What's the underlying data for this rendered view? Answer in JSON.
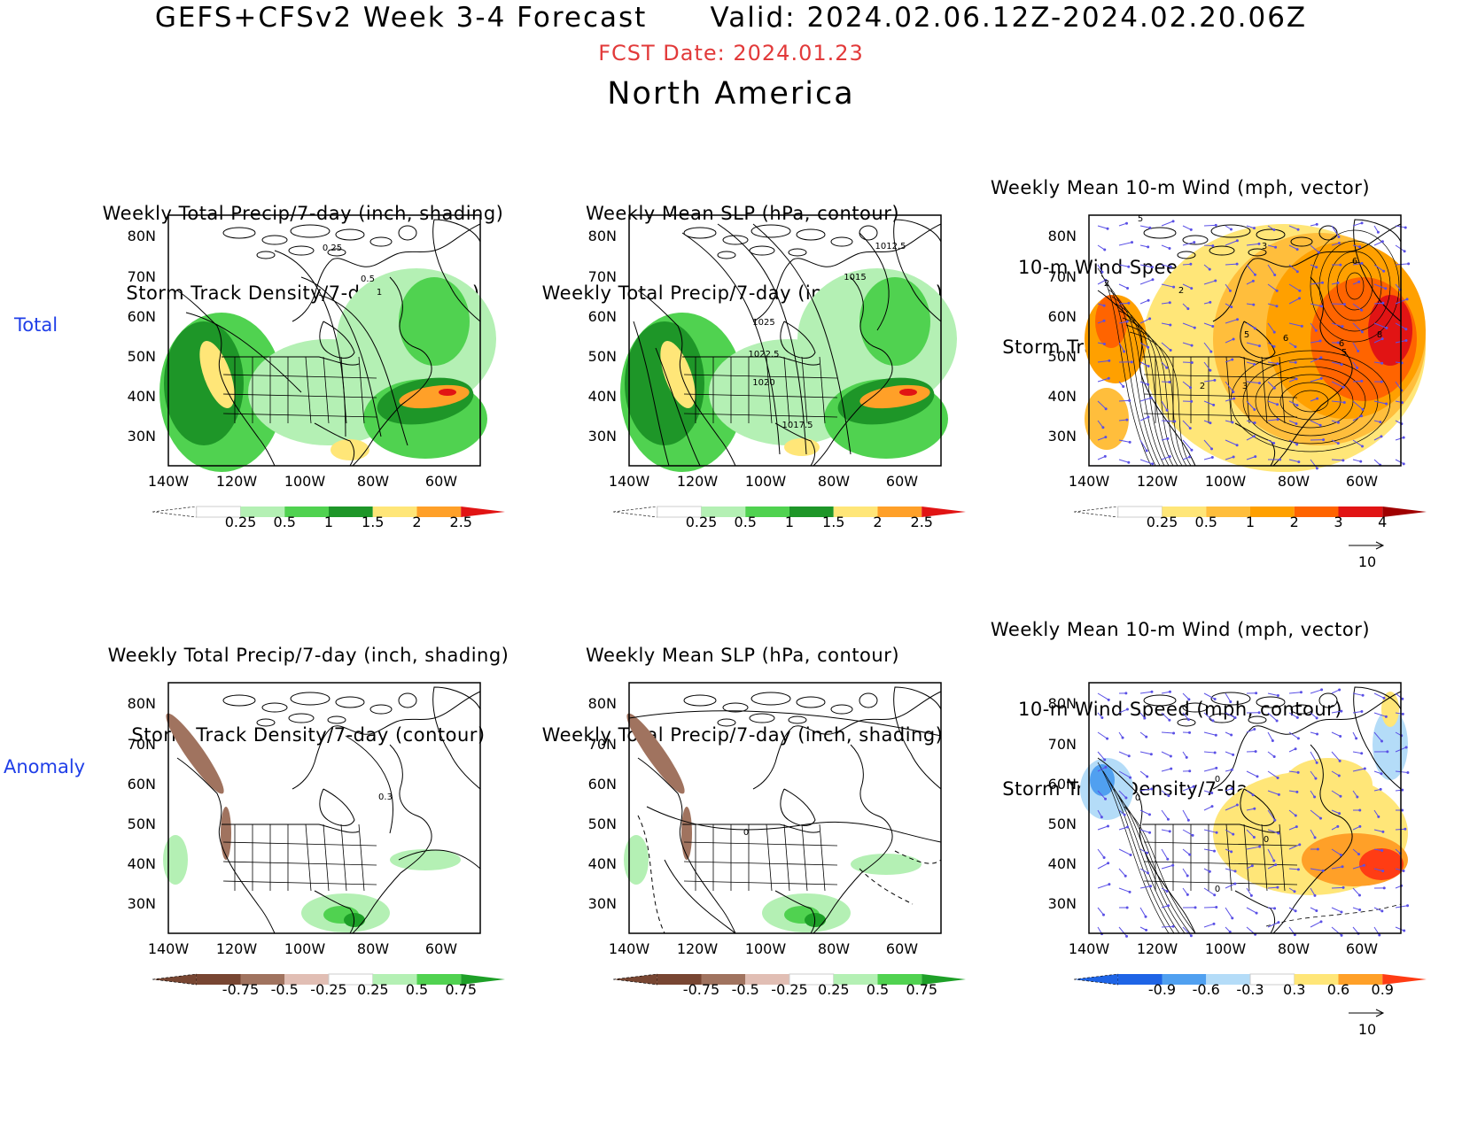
{
  "header": {
    "line1": "GEFS+CFSv2 Week 3-4 Forecast      Valid: 2024.02.06.12Z-2024.02.20.06Z",
    "fcst_date": "FCST Date: 2024.01.23",
    "region": "North America"
  },
  "rows": {
    "total": "Total",
    "anomaly": "Anomaly"
  },
  "axes": {
    "lat_labels": [
      "80N",
      "70N",
      "60N",
      "50N",
      "40N",
      "30N"
    ],
    "lon_labels": [
      "140W",
      "120W",
      "100W",
      "80W",
      "60W"
    ]
  },
  "panels": {
    "total_precip_track": {
      "title_lines": [
        "Weekly Total Precip/7-day (inch, shading)",
        "Storm Track Density/7-day (contour)"
      ],
      "contour_labels": [
        "0.25",
        "0.5",
        "1"
      ],
      "colorbar_labels": [
        "0.25",
        "0.5",
        "1",
        "1.5",
        "2",
        "2.5"
      ]
    },
    "total_slp_precip": {
      "title_lines": [
        "Weekly Mean SLP (hPa, contour)",
        "Weekly Total Precip/7-day (inch, shading)"
      ],
      "contour_labels": [
        "1012.5",
        "1015",
        "1025",
        "1022.5",
        "1020",
        "1017.5"
      ],
      "colorbar_labels": [
        "0.25",
        "0.5",
        "1",
        "1.5",
        "2",
        "2.5"
      ]
    },
    "total_wind_track": {
      "title_lines": [
        "Weekly Mean 10-m Wind (mph, vector)",
        "10-m Wind Speed (mph, contour)",
        "Storm Track Density/7-day (shading)"
      ],
      "contour_labels": [
        "5",
        "3",
        "6",
        "2",
        "2",
        "5",
        "6",
        "6",
        "8",
        "2",
        "3",
        "5"
      ],
      "colorbar_labels": [
        "0.25",
        "0.5",
        "1",
        "2",
        "3",
        "4"
      ],
      "vector_ref": "10"
    },
    "anom_precip_track": {
      "title_lines": [
        "Weekly Total Precip/7-day (inch, shading)",
        "Storm Track Density/7-day (contour)"
      ],
      "contour_labels": [
        "0.3"
      ],
      "colorbar_labels": [
        "-0.75",
        "-0.5",
        "-0.25",
        "0.25",
        "0.5",
        "0.75"
      ]
    },
    "anom_slp_precip": {
      "title_lines": [
        "Weekly Mean SLP (hPa, contour)",
        "Weekly Total Precip/7-day (inch, shading)"
      ],
      "contour_labels": [
        "0"
      ],
      "colorbar_labels": [
        "-0.75",
        "-0.5",
        "-0.25",
        "0.25",
        "0.5",
        "0.75"
      ]
    },
    "anom_wind_track": {
      "title_lines": [
        "Weekly Mean 10-m Wind (mph, vector)",
        "10-m Wind Speed (mph, contour)",
        "Storm Track Density/7-day (shading)"
      ],
      "contour_labels": [
        "0",
        "0",
        "0",
        "0"
      ],
      "colorbar_labels": [
        "-0.9",
        "-0.6",
        "-0.3",
        "0.3",
        "0.6",
        "0.9"
      ],
      "vector_ref": "10"
    }
  },
  "colors": {
    "precip_scale": [
      "#ffffff",
      "#b4f0b4",
      "#50d250",
      "#1e9628",
      "#ffe678",
      "#ffa028",
      "#e11414"
    ],
    "precip_anom_scale": [
      "#784632",
      "#a0735f",
      "#e1beb4",
      "#ffffff",
      "#b4f0b4",
      "#50d250",
      "#1ea028"
    ],
    "track_scale": [
      "#ffffff",
      "#ffe678",
      "#ffbe3c",
      "#ffa000",
      "#ff6400",
      "#e11414",
      "#a00000"
    ],
    "wind_anom_scale": [
      "#1e64e6",
      "#50a0f0",
      "#b4dcf8",
      "#ffffff",
      "#ffe678",
      "#ffa028",
      "#ff3c14"
    ],
    "title_red": "#e23a3a",
    "row_label_blue": "#1f3ee8",
    "vector_blue": "#5a50e6"
  }
}
